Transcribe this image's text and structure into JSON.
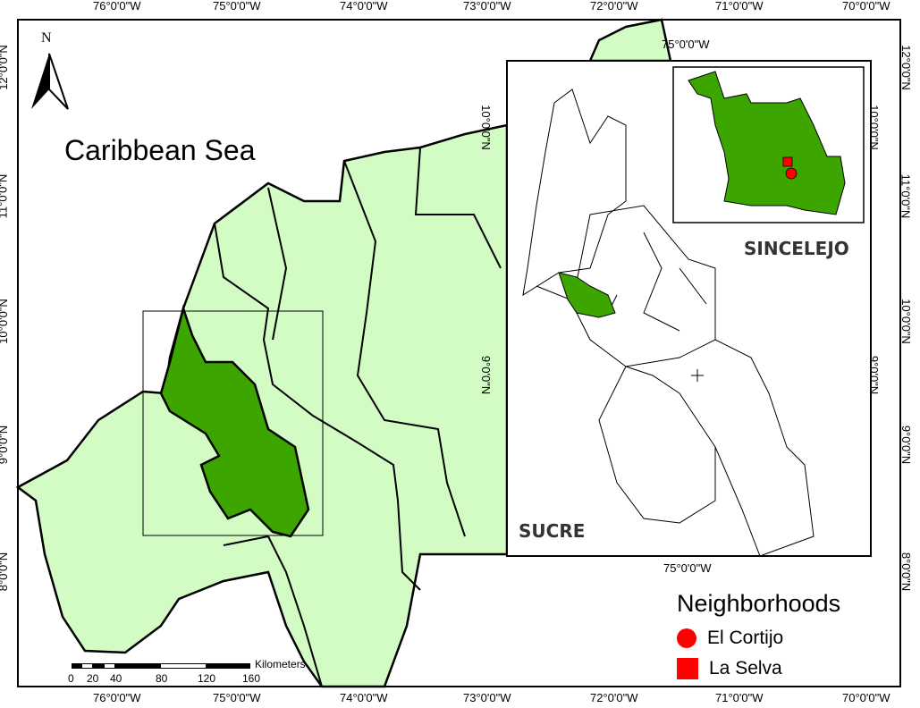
{
  "map": {
    "north_label": "N",
    "sea_label": "Caribbean Sea",
    "top_lon_labels": [
      "76°0'0\"W",
      "75°0'0\"W",
      "74°0'0\"W",
      "73°0'0\"W",
      "72°0'0\"W",
      "71°0'0\"W",
      "70°0'0\"W"
    ],
    "bottom_lon_labels": [
      "76°0'0\"W",
      "75°0'0\"W",
      "74°0'0\"W",
      "73°0'0\"W",
      "72°0'0\"W",
      "71°0'0\"W",
      "70°0'0\"W"
    ],
    "left_lat_labels": [
      "12°0'0\"N",
      "11°0'0\"N",
      "10°0'0\"N",
      "9°0'0\"N",
      "8°0'0\"N"
    ],
    "right_lat_labels": [
      "12°0'0\"N",
      "11°0'0\"N",
      "10°0'0\"N",
      "9°0'0\"N",
      "8°0'0\"N"
    ],
    "colors": {
      "land": "#d3fcc4",
      "highlight": "#3ca500",
      "marker": "#ff0000"
    }
  },
  "scale_bar": {
    "unit": "Kilometers",
    "ticks": [
      "0",
      "20",
      "40",
      "80",
      "120",
      "160"
    ]
  },
  "inset": {
    "region_label": "SUCRE",
    "city_label": "SINCELEJO",
    "top_lon": "75°0'0\"W",
    "bottom_lon": "75°0'0\"W",
    "left_lat": [
      "10°0'0\"N",
      "9°0'0\"N"
    ],
    "right_lat": [
      "10°0'0\"N",
      "9°0'0\"N"
    ]
  },
  "legend": {
    "title": "Neighborhoods",
    "items": [
      {
        "label": "El Cortijo",
        "symbol": "circle"
      },
      {
        "label": "La Selva",
        "symbol": "square"
      }
    ]
  }
}
